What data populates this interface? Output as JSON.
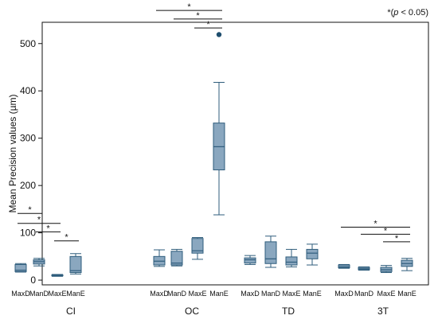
{
  "chart_data": {
    "type": "box",
    "ylabel": "Mean Precision values (µm)",
    "ylim": [
      -10,
      545
    ],
    "yticks": [
      0,
      100,
      200,
      300,
      400,
      500
    ],
    "grid": false,
    "significance_note": {
      "prefix": "*(",
      "italic": "p",
      "suffix": " < 0.05)"
    },
    "star_label": "*",
    "groups": [
      "CI",
      "OC",
      "TD",
      "3T"
    ],
    "methods": [
      "MaxD",
      "ManD",
      "MaxE",
      "ManE"
    ],
    "box_color": "#8aa7bf",
    "line_color": "#2f5d7c",
    "boxes": [
      {
        "group": "CI",
        "method": "MaxD",
        "min": 17,
        "q1": 18,
        "median": 21,
        "q3": 33,
        "max": 35
      },
      {
        "group": "CI",
        "method": "ManD",
        "min": 30,
        "q1": 34,
        "median": 39,
        "q3": 43,
        "max": 46
      },
      {
        "group": "CI",
        "method": "MaxE",
        "min": 8,
        "q1": 9,
        "median": 10,
        "q3": 11,
        "max": 12
      },
      {
        "group": "CI",
        "method": "ManE",
        "min": 13,
        "q1": 16,
        "median": 20,
        "q3": 50,
        "max": 56
      },
      {
        "group": "OC",
        "method": "MaxD",
        "min": 29,
        "q1": 32,
        "median": 40,
        "q3": 50,
        "max": 64
      },
      {
        "group": "OC",
        "method": "ManD",
        "min": 30,
        "q1": 32,
        "median": 36,
        "q3": 61,
        "max": 65
      },
      {
        "group": "OC",
        "method": "MaxE",
        "min": 44,
        "q1": 57,
        "median": 62,
        "q3": 88,
        "max": 90
      },
      {
        "group": "OC",
        "method": "ManE",
        "min": 138,
        "q1": 233,
        "median": 282,
        "q3": 332,
        "max": 418,
        "outliers": [
          519
        ]
      },
      {
        "group": "TD",
        "method": "MaxD",
        "min": 33,
        "q1": 36,
        "median": 43,
        "q3": 47,
        "max": 52
      },
      {
        "group": "TD",
        "method": "ManD",
        "min": 27,
        "q1": 35,
        "median": 45,
        "q3": 81,
        "max": 93
      },
      {
        "group": "TD",
        "method": "MaxE",
        "min": 28,
        "q1": 32,
        "median": 38,
        "q3": 49,
        "max": 65
      },
      {
        "group": "TD",
        "method": "ManE",
        "min": 32,
        "q1": 45,
        "median": 57,
        "q3": 65,
        "max": 76
      },
      {
        "group": "3T",
        "method": "MaxD",
        "min": 25,
        "q1": 26,
        "median": 28,
        "q3": 32,
        "max": 33
      },
      {
        "group": "3T",
        "method": "ManD",
        "min": 21,
        "q1": 22,
        "median": 24,
        "q3": 27,
        "max": 28
      },
      {
        "group": "3T",
        "method": "MaxE",
        "min": 16,
        "q1": 18,
        "median": 22,
        "q3": 27,
        "max": 31
      },
      {
        "group": "3T",
        "method": "ManE",
        "min": 20,
        "q1": 29,
        "median": 35,
        "q3": 42,
        "max": 46
      }
    ],
    "significance": [
      {
        "group": "CI",
        "from": "MaxD",
        "to": "ManD",
        "y": 141
      },
      {
        "group": "CI",
        "from": "MaxD",
        "to": "MaxE",
        "y": 120
      },
      {
        "group": "CI",
        "from": "ManD",
        "to": "MaxE",
        "y": 102
      },
      {
        "group": "CI",
        "from": "MaxE",
        "to": "ManE",
        "y": 83
      },
      {
        "group": "OC",
        "from": "MaxD",
        "to": "ManE",
        "y": 570
      },
      {
        "group": "OC",
        "from": "ManD",
        "to": "ManE",
        "y": 552
      },
      {
        "group": "OC",
        "from": "MaxE",
        "to": "ManE",
        "y": 533
      },
      {
        "group": "3T",
        "from": "MaxD",
        "to": "ManE",
        "y": 112
      },
      {
        "group": "3T",
        "from": "ManD",
        "to": "ManE",
        "y": 97
      },
      {
        "group": "3T",
        "from": "MaxE",
        "to": "ManE",
        "y": 81
      }
    ]
  }
}
